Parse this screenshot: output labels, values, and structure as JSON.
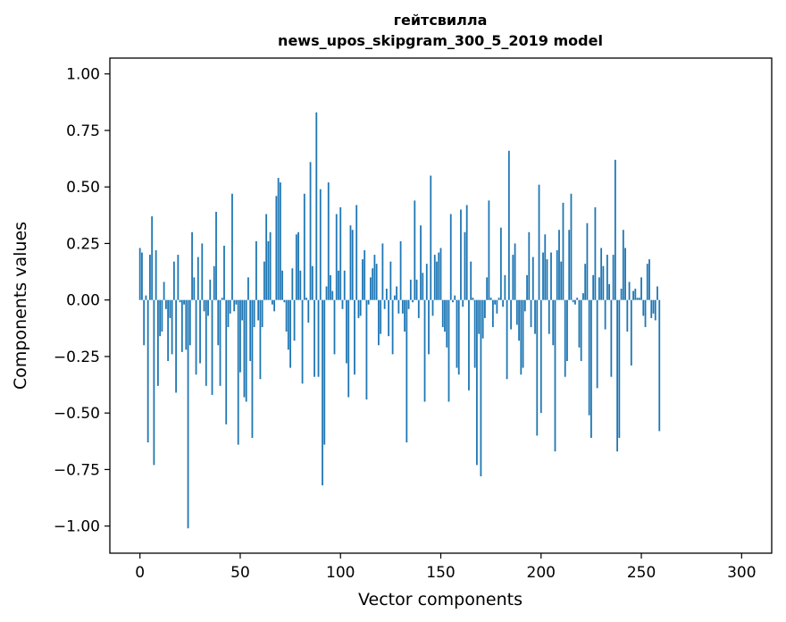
{
  "chart_data": {
    "type": "bar",
    "title_line1": "гейтсвилла",
    "title_line2": "news_upos_skipgram_300_5_2019 model",
    "xlabel": "Vector components",
    "ylabel": "Components values",
    "xlim": [
      -15,
      315
    ],
    "ylim": [
      -1.12,
      1.07
    ],
    "xticks": [
      0,
      50,
      100,
      150,
      200,
      250,
      300
    ],
    "yticks": [
      1.0,
      0.75,
      0.5,
      0.25,
      0.0,
      -0.25,
      -0.5,
      -0.75,
      -1.0
    ],
    "ytick_labels": [
      "1.00",
      "0.75",
      "0.50",
      "0.25",
      "0.00",
      "−0.25",
      "−0.50",
      "−0.75",
      "−1.00"
    ],
    "bar_color": "#1f77b4",
    "grid": false,
    "values": [
      0.23,
      0.21,
      -0.2,
      0.02,
      -0.63,
      0.2,
      0.37,
      -0.73,
      0.22,
      -0.38,
      -0.16,
      -0.14,
      0.08,
      -0.04,
      -0.27,
      -0.08,
      -0.24,
      0.17,
      -0.41,
      0.2,
      -0.01,
      -0.23,
      -0.02,
      -0.22,
      -1.01,
      -0.2,
      0.3,
      0.1,
      -0.33,
      0.19,
      -0.28,
      0.25,
      -0.05,
      -0.38,
      -0.07,
      0.09,
      -0.42,
      0.15,
      0.39,
      -0.2,
      -0.38,
      0.01,
      0.24,
      -0.55,
      -0.12,
      -0.06,
      0.47,
      -0.05,
      -0.02,
      -0.64,
      -0.32,
      -0.09,
      -0.43,
      -0.45,
      0.1,
      -0.27,
      -0.61,
      -0.12,
      0.26,
      -0.09,
      -0.35,
      -0.12,
      0.17,
      0.38,
      0.26,
      0.3,
      -0.02,
      -0.05,
      0.46,
      0.54,
      0.52,
      0.13,
      -0.01,
      -0.14,
      -0.22,
      -0.3,
      0.14,
      -0.18,
      0.29,
      0.3,
      0.13,
      -0.37,
      0.47,
      0.01,
      -0.1,
      0.61,
      0.15,
      -0.34,
      0.83,
      -0.34,
      0.49,
      -0.82,
      -0.64,
      0.06,
      0.52,
      0.11,
      0.04,
      -0.24,
      0.38,
      0.13,
      0.41,
      -0.04,
      0.13,
      -0.28,
      -0.43,
      0.33,
      0.31,
      -0.33,
      0.42,
      -0.08,
      -0.07,
      0.18,
      0.22,
      -0.44,
      -0.02,
      0.1,
      0.14,
      0.2,
      0.16,
      -0.2,
      -0.15,
      0.25,
      -0.04,
      0.05,
      -0.16,
      0.17,
      -0.24,
      0.02,
      0.06,
      -0.06,
      0.26,
      -0.06,
      -0.14,
      -0.63,
      -0.04,
      0.09,
      -0.01,
      0.44,
      0.09,
      -0.08,
      0.33,
      0.12,
      -0.45,
      0.16,
      -0.24,
      0.55,
      -0.07,
      0.2,
      0.17,
      0.21,
      0.23,
      -0.12,
      -0.14,
      -0.21,
      -0.45,
      0.38,
      -0.01,
      0.02,
      -0.3,
      -0.33,
      0.4,
      -0.03,
      0.3,
      0.42,
      -0.4,
      0.17,
      0.01,
      -0.3,
      -0.73,
      -0.15,
      -0.78,
      -0.17,
      -0.08,
      0.1,
      0.44,
      0.01,
      -0.12,
      -0.02,
      -0.06,
      0.01,
      0.32,
      -0.03,
      0.11,
      -0.35,
      0.66,
      -0.13,
      0.2,
      0.25,
      -0.11,
      -0.18,
      -0.33,
      -0.3,
      -0.05,
      0.11,
      0.3,
      -0.12,
      0.19,
      -0.15,
      -0.6,
      0.51,
      -0.5,
      0.21,
      0.29,
      0.18,
      -0.15,
      0.21,
      -0.2,
      -0.67,
      0.22,
      0.31,
      0.17,
      0.43,
      -0.34,
      -0.27,
      0.31,
      0.47,
      -0.01,
      -0.02,
      0.01,
      -0.21,
      -0.27,
      0.03,
      0.16,
      0.34,
      -0.51,
      -0.61,
      0.11,
      0.41,
      -0.39,
      0.1,
      0.23,
      0.15,
      -0.13,
      0.2,
      0.07,
      -0.34,
      0.2,
      0.62,
      -0.67,
      -0.61,
      0.05,
      0.31,
      0.23,
      -0.14,
      0.08,
      -0.29,
      0.04,
      0.05,
      0.01,
      0.01,
      0.1,
      -0.07,
      -0.12,
      0.16,
      0.18,
      -0.08,
      -0.06,
      -0.09,
      0.06,
      -0.58
    ]
  }
}
